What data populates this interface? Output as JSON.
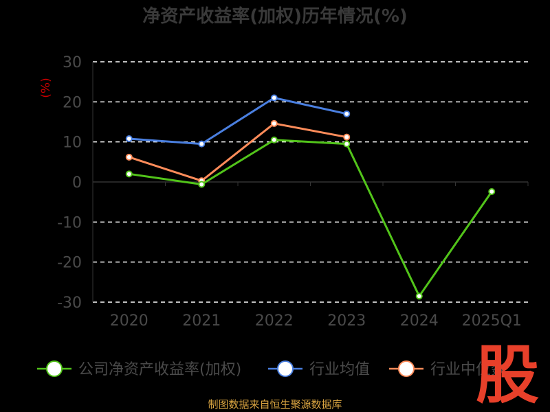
{
  "colors": {
    "background": "#000000",
    "company": "#52c41a",
    "industry_avg": "#4a7fe0",
    "industry_median": "#ff8c5a",
    "unit_label": "#cc0000",
    "source_text": "#d9a441",
    "logo": "#e8402a"
  },
  "brand": {
    "logo_char": "股",
    "source": "制图数据来自恒生聚源数据库"
  },
  "chart_data": {
    "type": "line",
    "title": "净资产收益率(加权)历年情况(%)",
    "ylabel": "(%)",
    "categories": [
      "2020",
      "2021",
      "2022",
      "2023",
      "2024",
      "2025Q1"
    ],
    "ylim": [
      -30,
      30
    ],
    "yticks": [
      30,
      20,
      10,
      0,
      -10,
      -20,
      -30
    ],
    "grid": true,
    "legend_position": "bottom",
    "series": [
      {
        "name": "公司净资产收益率(加权)",
        "color": "#52c41a",
        "values": [
          2.0,
          -0.6,
          10.5,
          9.5,
          -28.5,
          -2.4
        ]
      },
      {
        "name": "行业均值",
        "color": "#4a7fe0",
        "values": [
          10.8,
          9.5,
          21.0,
          17.0,
          null,
          null
        ]
      },
      {
        "name": "行业中位数",
        "color": "#ff8c5a",
        "values": [
          6.2,
          0.3,
          14.6,
          11.2,
          null,
          null
        ]
      }
    ]
  }
}
